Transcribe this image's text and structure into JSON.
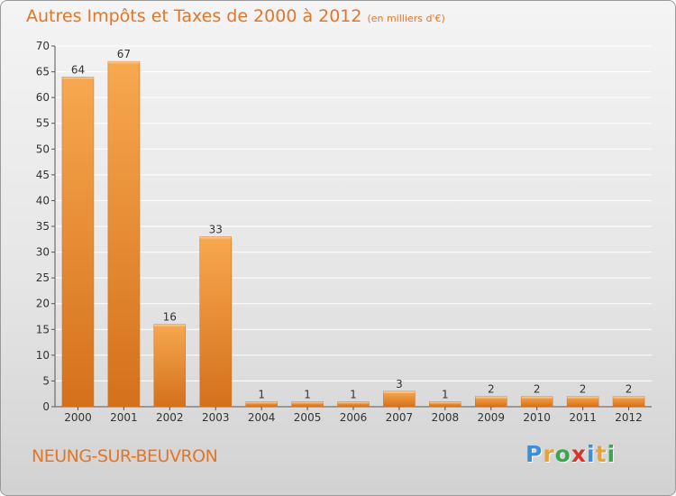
{
  "header": {
    "title": "Autres Impôts et Taxes de 2000 à 2012",
    "subtitle": "(en milliers d'€)"
  },
  "footer": {
    "place": "NEUNG-SUR-BEUVRON",
    "logo_letters": [
      "P",
      "r",
      "o",
      "x",
      "i",
      "t",
      "i"
    ],
    "logo_colors": [
      "#3a8fd8",
      "#e9a23b",
      "#3aa84a",
      "#d8342a",
      "#3a8fd8",
      "#e9a23b",
      "#3aa84a"
    ]
  },
  "colors": {
    "bar_light": "#f7a84f",
    "bar_dark": "#d4701c",
    "text": "#e0762a",
    "grid": "#ffffff",
    "axis_text": "#333333"
  },
  "chart_data": {
    "type": "bar",
    "title": "Autres Impôts et Taxes de 2000 à 2012",
    "subtitle": "(en milliers d'€)",
    "categories": [
      "2000",
      "2001",
      "2002",
      "2003",
      "2004",
      "2005",
      "2006",
      "2007",
      "2008",
      "2009",
      "2010",
      "2011",
      "2012"
    ],
    "values": [
      64,
      67,
      16,
      33,
      1,
      1,
      1,
      3,
      1,
      2,
      2,
      2,
      2
    ],
    "data_labels": [
      "64",
      "67",
      "16",
      "33",
      "1",
      "1",
      "1",
      "3",
      "1",
      "2",
      "2",
      "2",
      "2"
    ],
    "ylim": [
      0,
      70
    ],
    "yticks": [
      0,
      5,
      10,
      15,
      20,
      25,
      30,
      35,
      40,
      45,
      50,
      55,
      60,
      65,
      70
    ],
    "grid": true,
    "xlabel": "",
    "ylabel": ""
  }
}
